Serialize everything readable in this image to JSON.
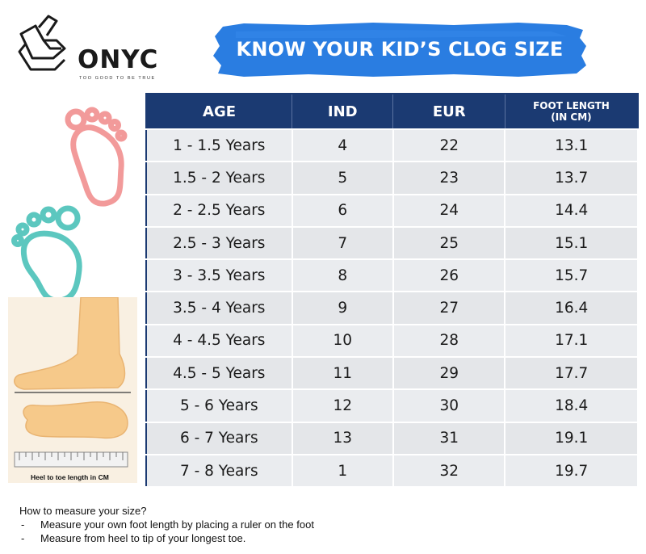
{
  "brand": {
    "name": "ONYC",
    "tagline": "TOO GOOD TO BE TRUE",
    "logo_icon": "onyc-hand-mark-icon"
  },
  "banner": {
    "title": "KNOW YOUR KID’S CLOG SIZE",
    "color": "#2a7de1"
  },
  "table": {
    "header_color": "#1b3a72",
    "headers": {
      "age": "AGE",
      "ind": "IND",
      "eur": "EUR",
      "foot_length_line1": "FOOT LENGTH",
      "foot_length_line2": "(IN CM)"
    },
    "rows": [
      {
        "age": "1 - 1.5 Years",
        "ind": "4",
        "eur": "22",
        "length": "13.1"
      },
      {
        "age": "1.5 - 2 Years",
        "ind": "5",
        "eur": "23",
        "length": "13.7"
      },
      {
        "age": "2 - 2.5 Years",
        "ind": "6",
        "eur": "24",
        "length": "14.4"
      },
      {
        "age": "2.5 - 3 Years",
        "ind": "7",
        "eur": "25",
        "length": "15.1"
      },
      {
        "age": "3 - 3.5 Years",
        "ind": "8",
        "eur": "26",
        "length": "15.7"
      },
      {
        "age": "3.5 - 4 Years",
        "ind": "9",
        "eur": "27",
        "length": "16.4"
      },
      {
        "age": "4 - 4.5 Years",
        "ind": "10",
        "eur": "28",
        "length": "17.1"
      },
      {
        "age": "4.5 - 5 Years",
        "ind": "11",
        "eur": "29",
        "length": "17.7"
      },
      {
        "age": "5 - 6 Years",
        "ind": "12",
        "eur": "30",
        "length": "18.4"
      },
      {
        "age": "6 - 7 Years",
        "ind": "13",
        "eur": "31",
        "length": "19.1"
      },
      {
        "age": "7 - 8 Years",
        "ind": "1",
        "eur": "32",
        "length": "19.7"
      }
    ]
  },
  "illustrations": {
    "pink_foot_icon": "baby-footprint-pink-icon",
    "teal_foot_icon": "baby-footprint-teal-icon",
    "measure_icon": "foot-on-ruler-icon",
    "pink_color": "#f29a9a",
    "teal_color": "#5cc7bf",
    "caption": "Heel to toe length in CM"
  },
  "instructions": {
    "heading": "How to measure your size?",
    "steps": [
      "Measure your own foot length by placing a ruler on the foot",
      "Measure from heel to tip of your longest toe."
    ]
  }
}
